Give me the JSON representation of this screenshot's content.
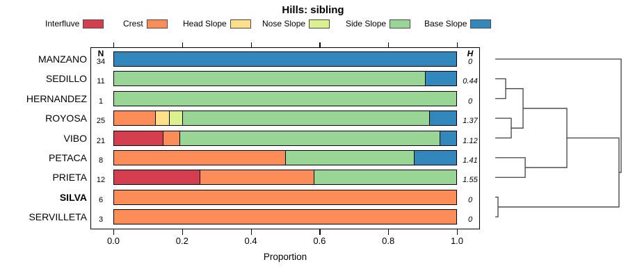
{
  "title": "Hills: sibling",
  "columns": {
    "n_header": "N",
    "h_header": "H"
  },
  "axis": {
    "label": "Proportion",
    "ticks": [
      "0.0",
      "0.2",
      "0.4",
      "0.6",
      "0.8",
      "1.0"
    ],
    "min": 0,
    "max": 1
  },
  "legend": {
    "items": [
      {
        "label": "Interfluve",
        "color": "#D53E4F"
      },
      {
        "label": "Crest",
        "color": "#FC8D59"
      },
      {
        "label": "Head Slope",
        "color": "#FEE08B"
      },
      {
        "label": "Nose Slope",
        "color": "#DDF08F"
      },
      {
        "label": "Side Slope",
        "color": "#99D594"
      },
      {
        "label": "Base Slope",
        "color": "#3288BD"
      }
    ]
  },
  "chart_data": {
    "type": "bar",
    "stacked": true,
    "orientation": "horizontal",
    "title": "Hills: sibling",
    "xlabel": "Proportion",
    "xlim": [
      0,
      1
    ],
    "grid": false,
    "legend_position": "top",
    "rows": [
      {
        "name": "MANZANO",
        "n": 34,
        "h": "0",
        "bold": false,
        "segments": [
          {
            "category": "Base Slope",
            "value": 1.0
          }
        ]
      },
      {
        "name": "SEDILLO",
        "n": 11,
        "h": "0.44",
        "bold": false,
        "segments": [
          {
            "category": "Side Slope",
            "value": 0.909
          },
          {
            "category": "Base Slope",
            "value": 0.091
          }
        ]
      },
      {
        "name": "HERNANDEZ",
        "n": 1,
        "h": "0",
        "bold": false,
        "segments": [
          {
            "category": "Side Slope",
            "value": 1.0
          }
        ]
      },
      {
        "name": "ROYOSA",
        "n": 25,
        "h": "1.37",
        "bold": false,
        "segments": [
          {
            "category": "Crest",
            "value": 0.12
          },
          {
            "category": "Head Slope",
            "value": 0.04
          },
          {
            "category": "Nose Slope",
            "value": 0.04
          },
          {
            "category": "Side Slope",
            "value": 0.72
          },
          {
            "category": "Base Slope",
            "value": 0.08
          }
        ]
      },
      {
        "name": "VIBO",
        "n": 21,
        "h": "1.12",
        "bold": false,
        "segments": [
          {
            "category": "Interfluve",
            "value": 0.143
          },
          {
            "category": "Crest",
            "value": 0.048
          },
          {
            "category": "Side Slope",
            "value": 0.761
          },
          {
            "category": "Base Slope",
            "value": 0.048
          }
        ]
      },
      {
        "name": "PETACA",
        "n": 8,
        "h": "1.41",
        "bold": false,
        "segments": [
          {
            "category": "Crest",
            "value": 0.5
          },
          {
            "category": "Side Slope",
            "value": 0.375
          },
          {
            "category": "Base Slope",
            "value": 0.125
          }
        ]
      },
      {
        "name": "PRIETA",
        "n": 12,
        "h": "1.55",
        "bold": false,
        "segments": [
          {
            "category": "Interfluve",
            "value": 0.25
          },
          {
            "category": "Crest",
            "value": 0.333
          },
          {
            "category": "Side Slope",
            "value": 0.417
          }
        ]
      },
      {
        "name": "SILVA",
        "n": 6,
        "h": "0",
        "bold": true,
        "segments": [
          {
            "category": "Crest",
            "value": 1.0
          }
        ]
      },
      {
        "name": "SERVILLETA",
        "n": 3,
        "h": "0",
        "bold": false,
        "segments": [
          {
            "category": "Crest",
            "value": 1.0
          }
        ]
      }
    ],
    "dendrogram": {
      "leaf_order": [
        "MANZANO",
        "SEDILLO",
        "HERNANDEZ",
        "ROYOSA",
        "VIBO",
        "PETACA",
        "PRIETA",
        "SILVA",
        "SERVILLETA"
      ],
      "merges": [
        {
          "id": "M1",
          "a": "SEDILLO",
          "b": "HERNANDEZ",
          "h": 0.083
        },
        {
          "id": "M2",
          "a": "ROYOSA",
          "b": "VIBO",
          "h": 0.127
        },
        {
          "id": "M3",
          "a": "M1",
          "b": "M2",
          "h": 0.221
        },
        {
          "id": "M4",
          "a": "PETACA",
          "b": "PRIETA",
          "h": 0.238
        },
        {
          "id": "M5",
          "a": "M3",
          "b": "M4",
          "h": 0.569
        },
        {
          "id": "M6",
          "a": "SILVA",
          "b": "SERVILLETA",
          "h": 0.022
        },
        {
          "id": "M7",
          "a": "M5",
          "b": "M6",
          "h": 0.983
        },
        {
          "id": "ROOT",
          "a": "MANZANO",
          "b": "M7",
          "h": 1.0
        }
      ]
    }
  }
}
